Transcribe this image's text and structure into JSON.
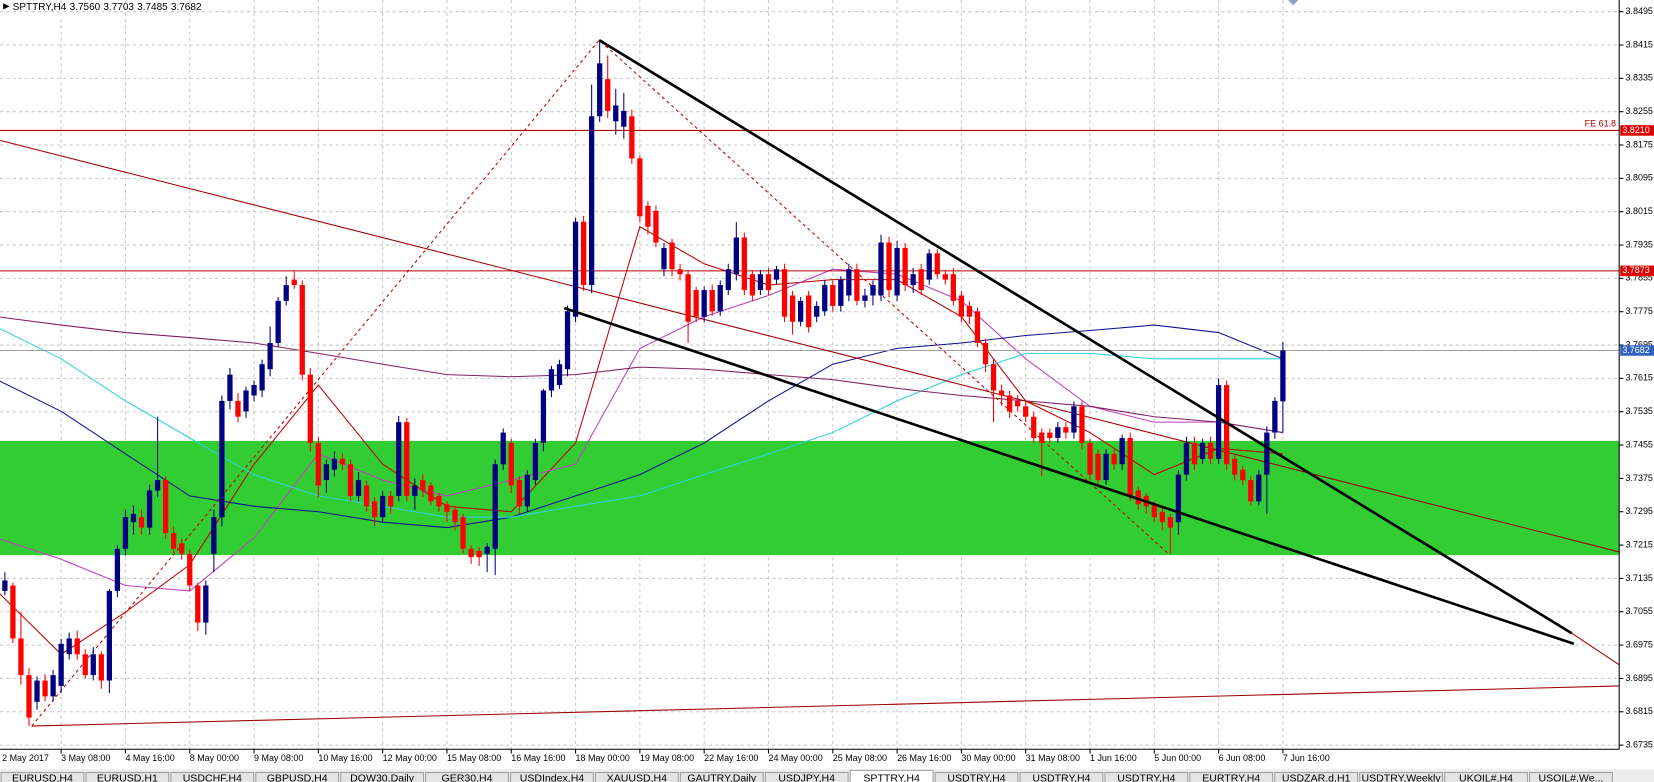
{
  "chart_data": {
    "type": "candlestick",
    "symbol": "SPTTRY,H4",
    "quote_labels": [
      "3.7560",
      "3.7703",
      "3.7485",
      "3.7682"
    ],
    "up_color": "#000080",
    "down_color": "#ff0000",
    "ylim": [
      3.6725,
      3.8523
    ],
    "yticks": [
      3.8495,
      3.8415,
      3.8335,
      3.8255,
      3.8175,
      3.8095,
      3.8015,
      3.7935,
      3.7855,
      3.7775,
      3.7695,
      3.7615,
      3.7535,
      3.7455,
      3.7375,
      3.7295,
      3.7215,
      3.7135,
      3.7055,
      3.6975,
      3.6895,
      3.6815,
      3.6735
    ],
    "grid": true,
    "categories": [
      "2 May 2017",
      null,
      null,
      null,
      null,
      null,
      null,
      null,
      "3 May 08:00",
      null,
      null,
      null,
      null,
      null,
      null,
      null,
      "4 May 16:00",
      null,
      null,
      null,
      null,
      null,
      null,
      null,
      "8 May 00:00",
      null,
      null,
      null,
      null,
      null,
      null,
      null,
      "9 May 08:00",
      null,
      null,
      null,
      null,
      null,
      null,
      null,
      "10 May 16:00",
      null,
      null,
      null,
      null,
      null,
      null,
      null,
      "12 May 00:00",
      null,
      null,
      null,
      null,
      null,
      null,
      null,
      "15 May 08:00",
      null,
      null,
      null,
      null,
      null,
      null,
      null,
      "16 May 16:00",
      null,
      null,
      null,
      null,
      null,
      null,
      null,
      "18 May 00:00",
      null,
      null,
      null,
      null,
      null,
      null,
      null,
      "19 May 08:00",
      null,
      null,
      null,
      null,
      null,
      null,
      null,
      "22 May 16:00",
      null,
      null,
      null,
      null,
      null,
      null,
      null,
      "24 May 00:00",
      null,
      null,
      null,
      null,
      null,
      null,
      null,
      "25 May 08:00",
      null,
      null,
      null,
      null,
      null,
      null,
      null,
      "26 May 16:00",
      null,
      null,
      null,
      null,
      null,
      null,
      null,
      "30 May 00:00",
      null,
      null,
      null,
      null,
      null,
      null,
      null,
      "31 May 08:00",
      null,
      null,
      null,
      null,
      null,
      null,
      null,
      "1 Jun 16:00",
      null,
      null,
      null,
      null,
      null,
      null,
      null,
      "5 Jun 00:00",
      null,
      null,
      null,
      null,
      null,
      null,
      null,
      "6 Jun 08:00",
      null,
      null,
      null,
      null,
      null,
      null,
      null,
      "7 Jun 16:00"
    ],
    "ohlc": [
      [
        3.71,
        3.713,
        3.706,
        3.709
      ],
      [
        3.7105,
        3.715,
        3.7095,
        3.713
      ],
      [
        3.7118,
        3.7125,
        3.698,
        3.6991
      ],
      [
        3.6991,
        3.7054,
        3.688,
        3.6903
      ],
      [
        3.6903,
        3.692,
        3.6781,
        3.6801
      ],
      [
        3.6839,
        3.69,
        3.682,
        3.689
      ],
      [
        3.689,
        3.6905,
        3.684,
        3.6852
      ],
      [
        3.6852,
        3.6915,
        3.684,
        3.6903
      ],
      [
        3.6877,
        3.699,
        3.686,
        3.6978
      ],
      [
        3.6953,
        3.7005,
        3.694,
        3.6991
      ],
      [
        3.6991,
        3.701,
        3.694,
        3.6953
      ],
      [
        3.6953,
        3.6965,
        3.6895,
        3.6903
      ],
      [
        3.6903,
        3.697,
        3.689,
        3.6953
      ],
      [
        3.6953,
        3.696,
        3.687,
        3.689
      ],
      [
        3.689,
        3.711,
        3.686,
        3.7105
      ],
      [
        3.7105,
        3.7215,
        3.709,
        3.7206
      ],
      [
        3.7206,
        3.73,
        3.719,
        3.7282
      ],
      [
        3.727,
        3.731,
        3.724,
        3.729
      ],
      [
        3.7282,
        3.73,
        3.724,
        3.7257
      ],
      [
        3.7257,
        3.736,
        3.724,
        3.7346
      ],
      [
        3.7346,
        3.7523,
        3.733,
        3.7371
      ],
      [
        3.7371,
        3.738,
        3.723,
        3.7244
      ],
      [
        3.7244,
        3.726,
        3.7195,
        3.7206
      ],
      [
        3.7219,
        3.723,
        3.718,
        3.7194
      ],
      [
        3.7194,
        3.7205,
        3.7105,
        3.7118
      ],
      [
        3.7118,
        3.7125,
        3.7009,
        3.7029
      ],
      [
        3.7029,
        3.713,
        3.7,
        3.7118
      ],
      [
        3.7194,
        3.73,
        3.715,
        3.7282
      ],
      [
        3.7282,
        3.7574,
        3.726,
        3.7561
      ],
      [
        3.7561,
        3.764,
        3.754,
        3.7624
      ],
      [
        3.7561,
        3.758,
        3.751,
        3.7523
      ],
      [
        3.7536,
        3.7595,
        3.752,
        3.7586
      ],
      [
        3.7574,
        3.761,
        3.756,
        3.7599
      ],
      [
        3.7586,
        3.766,
        3.757,
        3.7649
      ],
      [
        3.7637,
        3.774,
        3.762,
        3.77
      ],
      [
        3.77,
        3.781,
        3.769,
        3.7801
      ],
      [
        3.7801,
        3.786,
        3.779,
        3.7839
      ],
      [
        3.7852,
        3.7872,
        3.783,
        3.7839
      ],
      [
        3.7839,
        3.785,
        3.761,
        3.7624
      ],
      [
        3.7624,
        3.764,
        3.744,
        3.746
      ],
      [
        3.746,
        3.7475,
        3.733,
        3.7358
      ],
      [
        3.7371,
        3.742,
        3.734,
        3.7409
      ],
      [
        3.7396,
        3.744,
        3.738,
        3.7422
      ],
      [
        3.7422,
        3.7435,
        3.7395,
        3.7409
      ],
      [
        3.7409,
        3.742,
        3.732,
        3.7333
      ],
      [
        3.7333,
        3.739,
        3.732,
        3.7371
      ],
      [
        3.7358,
        3.737,
        3.7295,
        3.7308
      ],
      [
        3.732,
        3.733,
        3.726,
        3.7282
      ],
      [
        3.7282,
        3.7345,
        3.727,
        3.7333
      ],
      [
        3.7333,
        3.7345,
        3.729,
        3.7308
      ],
      [
        3.7333,
        3.7525,
        3.732,
        3.751
      ],
      [
        3.751,
        3.752,
        3.732,
        3.7333
      ],
      [
        3.7333,
        3.7375,
        3.73,
        3.7358
      ],
      [
        3.7371,
        3.7385,
        3.733,
        3.7346
      ],
      [
        3.7358,
        3.7365,
        3.731,
        3.732
      ],
      [
        3.7333,
        3.734,
        3.7295,
        3.7308
      ],
      [
        3.7313,
        3.732,
        3.727,
        3.7295
      ],
      [
        3.73,
        3.731,
        3.725,
        3.727
      ],
      [
        3.7282,
        3.729,
        3.7195,
        3.7206
      ],
      [
        3.7206,
        3.7215,
        3.717,
        3.7186
      ],
      [
        3.7201,
        3.721,
        3.7165,
        3.7186
      ],
      [
        3.7194,
        3.722,
        3.715,
        3.7211
      ],
      [
        3.7206,
        3.742,
        3.7143,
        3.7409
      ],
      [
        3.7409,
        3.7495,
        3.7395,
        3.7485
      ],
      [
        3.746,
        3.747,
        3.734,
        3.7358
      ],
      [
        3.7371,
        3.738,
        3.729,
        3.7308
      ],
      [
        3.7308,
        3.7395,
        3.7295,
        3.7384
      ],
      [
        3.7371,
        3.747,
        3.736,
        3.746
      ],
      [
        3.746,
        3.759,
        3.744,
        3.7586
      ],
      [
        3.7586,
        3.7645,
        3.757,
        3.7637
      ],
      [
        3.7599,
        3.766,
        3.759,
        3.7649
      ],
      [
        3.7637,
        3.779,
        3.762,
        3.7776
      ],
      [
        3.7763,
        3.8,
        3.775,
        3.7991
      ],
      [
        3.7991,
        3.8005,
        3.7825,
        3.7839
      ],
      [
        3.7839,
        3.832,
        3.782,
        3.8244
      ],
      [
        3.8244,
        3.8422,
        3.823,
        3.8371
      ],
      [
        3.8333,
        3.839,
        3.824,
        3.8257
      ],
      [
        3.8232,
        3.831,
        3.82,
        3.827
      ],
      [
        3.8219,
        3.83,
        3.819,
        3.8257
      ],
      [
        3.8244,
        3.826,
        3.813,
        3.8143
      ],
      [
        3.8143,
        3.815,
        3.799,
        3.8004
      ],
      [
        3.8029,
        3.804,
        3.796,
        3.7979
      ],
      [
        3.8017,
        3.803,
        3.793,
        3.7941
      ],
      [
        3.7877,
        3.794,
        3.786,
        3.7928
      ],
      [
        3.7941,
        3.795,
        3.786,
        3.7877
      ],
      [
        3.7877,
        3.789,
        3.785,
        3.7865
      ],
      [
        3.7865,
        3.7875,
        3.77,
        3.7751
      ],
      [
        3.7827,
        3.7835,
        3.775,
        3.7763
      ],
      [
        3.7763,
        3.7835,
        3.775,
        3.7827
      ],
      [
        3.7827,
        3.784,
        3.7765,
        3.7776
      ],
      [
        3.7776,
        3.785,
        3.7765,
        3.7839
      ],
      [
        3.7827,
        3.789,
        3.7815,
        3.7877
      ],
      [
        3.7865,
        3.799,
        3.785,
        3.7953
      ],
      [
        3.7953,
        3.7965,
        3.7815,
        3.7827
      ],
      [
        3.7865,
        3.7875,
        3.78,
        3.7814
      ],
      [
        3.7827,
        3.7875,
        3.7815,
        3.7865
      ],
      [
        3.7865,
        3.788,
        3.7815,
        3.7827
      ],
      [
        3.7852,
        3.7885,
        3.784,
        3.7877
      ],
      [
        3.7877,
        3.789,
        3.775,
        3.7763
      ],
      [
        3.7814,
        3.7825,
        3.772,
        3.7751
      ],
      [
        3.7751,
        3.781,
        3.774,
        3.7801
      ],
      [
        3.7814,
        3.7825,
        3.7725,
        3.7738
      ],
      [
        3.7763,
        3.78,
        3.775,
        3.7789
      ],
      [
        3.7776,
        3.785,
        3.7765,
        3.7839
      ],
      [
        3.7839,
        3.785,
        3.7775,
        3.7789
      ],
      [
        3.7789,
        3.786,
        3.7775,
        3.7852
      ],
      [
        3.7814,
        3.789,
        3.78,
        3.7877
      ],
      [
        3.7877,
        3.789,
        3.779,
        3.7801
      ],
      [
        3.7801,
        3.783,
        3.7785,
        3.7814
      ],
      [
        3.7814,
        3.785,
        3.779,
        3.7839
      ],
      [
        3.7814,
        3.796,
        3.78,
        3.7941
      ],
      [
        3.7941,
        3.7955,
        3.781,
        3.7827
      ],
      [
        3.7814,
        3.7945,
        3.78,
        3.7928
      ],
      [
        3.7928,
        3.794,
        3.7825,
        3.7839
      ],
      [
        3.7839,
        3.788,
        3.782,
        3.7865
      ],
      [
        3.7877,
        3.789,
        3.7815,
        3.7827
      ],
      [
        3.7852,
        3.7925,
        3.784,
        3.7915
      ],
      [
        3.7915,
        3.7925,
        3.7855,
        3.7865
      ],
      [
        3.7865,
        3.7875,
        3.784,
        3.7852
      ],
      [
        3.7865,
        3.788,
        3.779,
        3.7801
      ],
      [
        3.7814,
        3.7825,
        3.775,
        3.7763
      ],
      [
        3.7789,
        3.78,
        3.7745,
        3.7763
      ],
      [
        3.7776,
        3.7785,
        3.769,
        3.77
      ],
      [
        3.77,
        3.771,
        3.763,
        3.7649
      ],
      [
        3.7649,
        3.766,
        3.751,
        3.7586
      ],
      [
        3.7586,
        3.76,
        3.755,
        3.7574
      ],
      [
        3.7574,
        3.7585,
        3.752,
        3.7536
      ],
      [
        3.7561,
        3.7575,
        3.7535,
        3.7548
      ],
      [
        3.7548,
        3.756,
        3.751,
        3.7523
      ],
      [
        3.7523,
        3.7535,
        3.746,
        3.7472
      ],
      [
        3.7485,
        3.7495,
        3.738,
        3.746
      ],
      [
        3.7485,
        3.7495,
        3.746,
        3.7472
      ],
      [
        3.7472,
        3.751,
        3.746,
        3.7498
      ],
      [
        3.7498,
        3.751,
        3.747,
        3.7485
      ],
      [
        3.7485,
        3.756,
        3.747,
        3.7548
      ],
      [
        3.7548,
        3.756,
        3.7445,
        3.746
      ],
      [
        3.746,
        3.747,
        3.737,
        3.7384
      ],
      [
        3.7434,
        3.7445,
        3.7355,
        3.7371
      ],
      [
        3.7371,
        3.7445,
        3.736,
        3.7434
      ],
      [
        3.7434,
        3.7445,
        3.7395,
        3.7409
      ],
      [
        3.7409,
        3.748,
        3.7395,
        3.7472
      ],
      [
        3.7472,
        3.7485,
        3.732,
        3.7333
      ],
      [
        3.7346,
        3.7355,
        3.73,
        3.7313
      ],
      [
        3.7333,
        3.734,
        3.729,
        3.7308
      ],
      [
        3.7313,
        3.732,
        3.727,
        3.7282
      ],
      [
        3.7295,
        3.7305,
        3.725,
        3.727
      ],
      [
        3.7282,
        3.729,
        3.7194,
        3.7257
      ],
      [
        3.727,
        3.7395,
        3.724,
        3.7384
      ],
      [
        3.7384,
        3.7475,
        3.737,
        3.746
      ],
      [
        3.746,
        3.7475,
        3.7395,
        3.7409
      ],
      [
        3.7422,
        3.747,
        3.741,
        3.746
      ],
      [
        3.746,
        3.7475,
        3.741,
        3.7422
      ],
      [
        3.7422,
        3.7615,
        3.741,
        3.7599
      ],
      [
        3.7599,
        3.761,
        3.7395,
        3.7409
      ],
      [
        3.7422,
        3.743,
        3.737,
        3.7384
      ],
      [
        3.7396,
        3.7405,
        3.736,
        3.7371
      ],
      [
        3.7371,
        3.738,
        3.731,
        3.732
      ],
      [
        3.732,
        3.7395,
        3.731,
        3.7384
      ],
      [
        3.7384,
        3.75,
        3.729,
        3.7485
      ],
      [
        3.7485,
        3.757,
        3.747,
        3.7561
      ],
      [
        3.756,
        3.7703,
        3.7485,
        3.7682
      ]
    ],
    "indicator_x": [
      0,
      8,
      16,
      24,
      32,
      40,
      48,
      56,
      64,
      72,
      80,
      88,
      96,
      104,
      112,
      120,
      128,
      136,
      144,
      152,
      160
    ],
    "indicators": [
      {
        "color": "#c00000",
        "values": [
          3.7105,
          3.6953,
          3.7054,
          3.7168,
          3.7409,
          3.7599,
          3.7409,
          3.7308,
          3.7295,
          3.746,
          3.7979,
          3.789,
          3.7839,
          3.7852,
          3.7852,
          3.7763,
          3.7561,
          3.7485,
          3.7384,
          3.7447,
          3.7434
        ]
      },
      {
        "color": "#c040c0",
        "values": [
          3.7232,
          3.7181,
          3.7118,
          3.7105,
          3.7232,
          3.7434,
          3.7371,
          3.7333,
          3.7371,
          3.7409,
          3.7687,
          3.7763,
          3.7814,
          3.7877,
          3.7865,
          3.7801,
          3.7662,
          3.7548,
          3.751,
          3.751,
          3.7485
        ]
      },
      {
        "color": "#101090",
        "values": [
          3.7612,
          3.7536,
          3.7434,
          3.7333,
          3.7308,
          3.7295,
          3.727,
          3.7257,
          3.7282,
          3.7333,
          3.7384,
          3.746,
          3.7561,
          3.7649,
          3.7687,
          3.77,
          3.7718,
          3.773,
          3.7743,
          3.7725,
          3.7662
        ]
      },
      {
        "color": "#30d0e0",
        "values": [
          3.7738,
          3.7662,
          3.7561,
          3.7472,
          3.7384,
          3.7333,
          3.7308,
          3.7282,
          3.7282,
          3.7308,
          3.7333,
          3.7384,
          3.7434,
          3.7485,
          3.7561,
          3.7624,
          3.7675,
          3.7675,
          3.7662,
          3.7662,
          3.7662
        ]
      },
      {
        "color": "#802060",
        "values": [
          3.7763,
          3.7743,
          3.7725,
          3.7713,
          3.77,
          3.7675,
          3.7649,
          3.7624,
          3.7619,
          3.7624,
          3.7642,
          3.7637,
          3.7624,
          3.7612,
          3.7591,
          3.7574,
          3.7561,
          3.7548,
          3.7523,
          3.751,
          3.7485
        ]
      }
    ],
    "zone": [
      3.7191,
      3.7465
    ],
    "zone_color": "#32cd32",
    "levels": [
      {
        "value": {
          "value": 3.821,
          "label": "3.8210"
        },
        "text": "FE 61.8",
        "color": "#b00000"
      },
      {
        "value": 3.7873,
        "color": "#b00000"
      }
    ],
    "price_color": "#3060c0"
  },
  "tabs": [
    "EURUSD,H4",
    "EURUSD,H1",
    "USDCHF,H4",
    "GBPUSD,H4",
    "DOW30,Daily",
    "GER30,H4",
    "USDIndex,H4",
    "XAUUSD,H4",
    "GAUTRY,Daily",
    "USDJPY,H4",
    "SPTTRY,H4",
    "USDTRY,H4",
    "USDTRY,H4",
    "USDTRY,H4",
    "EURTRY,H4",
    "USDZAR.d,H1",
    "USDTRY,Weekly",
    "UKOIL#,H4",
    "USOIL#,We..."
  ],
  "active_tab": 10
}
